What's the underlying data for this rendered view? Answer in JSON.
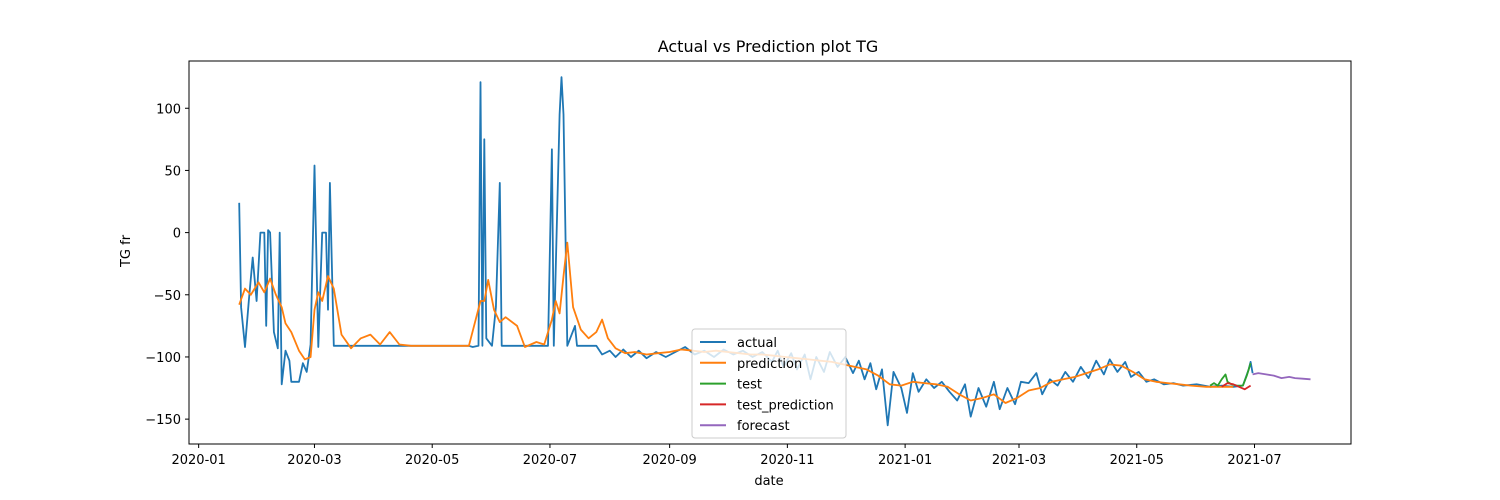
{
  "chart_data": {
    "type": "line",
    "title": "Actual vs Prediction plot TG",
    "xlabel": "date",
    "ylabel": "TG fr",
    "xlim": [
      "2019-12-27",
      "2021-08-20"
    ],
    "ylim": [
      -170,
      138
    ],
    "x_ticks": [
      "2020-01",
      "2020-03",
      "2020-05",
      "2020-07",
      "2020-09",
      "2020-11",
      "2021-01",
      "2021-03",
      "2021-05",
      "2021-07"
    ],
    "y_ticks": [
      100,
      50,
      0,
      -50,
      -100,
      -150
    ],
    "grid": false,
    "legend_position": "lower-center",
    "series": [
      {
        "name": "actual",
        "color": "#1f77b4",
        "points": [
          [
            "2020-01-22",
            24
          ],
          [
            "2020-01-23",
            -60
          ],
          [
            "2020-01-25",
            -92
          ],
          [
            "2020-01-27",
            -55
          ],
          [
            "2020-01-29",
            -20
          ],
          [
            "2020-01-31",
            -55
          ],
          [
            "2020-02-02",
            0
          ],
          [
            "2020-02-04",
            0
          ],
          [
            "2020-02-05",
            -75
          ],
          [
            "2020-02-06",
            2
          ],
          [
            "2020-02-07",
            0
          ],
          [
            "2020-02-09",
            -80
          ],
          [
            "2020-02-11",
            -93
          ],
          [
            "2020-02-12",
            0
          ],
          [
            "2020-02-13",
            -122
          ],
          [
            "2020-02-15",
            -95
          ],
          [
            "2020-02-17",
            -103
          ],
          [
            "2020-02-18",
            -120
          ],
          [
            "2020-02-22",
            -120
          ],
          [
            "2020-02-24",
            -105
          ],
          [
            "2020-02-26",
            -112
          ],
          [
            "2020-02-28",
            -90
          ],
          [
            "2020-03-01",
            54
          ],
          [
            "2020-03-03",
            -92
          ],
          [
            "2020-03-05",
            0
          ],
          [
            "2020-03-07",
            0
          ],
          [
            "2020-03-08",
            -62
          ],
          [
            "2020-03-09",
            40
          ],
          [
            "2020-03-11",
            -91
          ],
          [
            "2020-04-15",
            -91
          ],
          [
            "2020-05-20",
            -91
          ],
          [
            "2020-05-22",
            -92
          ],
          [
            "2020-05-25",
            -91
          ],
          [
            "2020-05-26",
            121
          ],
          [
            "2020-05-27",
            -91
          ],
          [
            "2020-05-28",
            75
          ],
          [
            "2020-05-29",
            -85
          ],
          [
            "2020-06-01",
            -91
          ],
          [
            "2020-06-03",
            -60
          ],
          [
            "2020-06-05",
            40
          ],
          [
            "2020-06-06",
            -91
          ],
          [
            "2020-06-30",
            -91
          ],
          [
            "2020-07-02",
            67
          ],
          [
            "2020-07-03",
            -91
          ],
          [
            "2020-07-06",
            95
          ],
          [
            "2020-07-07",
            125
          ],
          [
            "2020-07-08",
            95
          ],
          [
            "2020-07-10",
            -91
          ],
          [
            "2020-07-14",
            -75
          ],
          [
            "2020-07-15",
            -91
          ],
          [
            "2020-07-25",
            -91
          ],
          [
            "2020-07-28",
            -98
          ],
          [
            "2020-08-01",
            -95
          ],
          [
            "2020-08-04",
            -100
          ],
          [
            "2020-08-08",
            -94
          ],
          [
            "2020-08-12",
            -100
          ],
          [
            "2020-08-16",
            -95
          ],
          [
            "2020-08-20",
            -101
          ],
          [
            "2020-08-25",
            -96
          ],
          [
            "2020-08-30",
            -100
          ],
          [
            "2020-09-04",
            -96
          ],
          [
            "2020-09-09",
            -92
          ],
          [
            "2020-09-14",
            -98
          ],
          [
            "2020-09-19",
            -95
          ],
          [
            "2020-09-24",
            -100
          ],
          [
            "2020-09-29",
            -94
          ],
          [
            "2020-10-04",
            -98
          ],
          [
            "2020-10-09",
            -95
          ],
          [
            "2020-10-14",
            -100
          ],
          [
            "2020-10-19",
            -96
          ],
          [
            "2020-10-24",
            -104
          ],
          [
            "2020-10-27",
            -95
          ],
          [
            "2020-10-30",
            -108
          ],
          [
            "2020-11-03",
            -97
          ],
          [
            "2020-11-06",
            -110
          ],
          [
            "2020-11-10",
            -98
          ],
          [
            "2020-11-13",
            -118
          ],
          [
            "2020-11-16",
            -100
          ],
          [
            "2020-11-20",
            -112
          ],
          [
            "2020-11-23",
            -96
          ],
          [
            "2020-11-27",
            -108
          ],
          [
            "2020-12-01",
            -100
          ],
          [
            "2020-12-05",
            -113
          ],
          [
            "2020-12-08",
            -103
          ],
          [
            "2020-12-11",
            -118
          ],
          [
            "2020-12-14",
            -105
          ],
          [
            "2020-12-17",
            -126
          ],
          [
            "2020-12-20",
            -110
          ],
          [
            "2020-12-23",
            -155
          ],
          [
            "2020-12-26",
            -112
          ],
          [
            "2020-12-30",
            -125
          ],
          [
            "2021-01-02",
            -145
          ],
          [
            "2021-01-05",
            -113
          ],
          [
            "2021-01-08",
            -128
          ],
          [
            "2021-01-12",
            -118
          ],
          [
            "2021-01-16",
            -125
          ],
          [
            "2021-01-20",
            -120
          ],
          [
            "2021-01-24",
            -128
          ],
          [
            "2021-01-28",
            -135
          ],
          [
            "2021-02-01",
            -122
          ],
          [
            "2021-02-04",
            -148
          ],
          [
            "2021-02-08",
            -125
          ],
          [
            "2021-02-12",
            -140
          ],
          [
            "2021-02-16",
            -120
          ],
          [
            "2021-02-19",
            -142
          ],
          [
            "2021-02-23",
            -125
          ],
          [
            "2021-02-27",
            -138
          ],
          [
            "2021-03-02",
            -120
          ],
          [
            "2021-03-06",
            -121
          ],
          [
            "2021-03-10",
            -113
          ],
          [
            "2021-03-13",
            -130
          ],
          [
            "2021-03-17",
            -118
          ],
          [
            "2021-03-21",
            -123
          ],
          [
            "2021-03-25",
            -112
          ],
          [
            "2021-03-29",
            -120
          ],
          [
            "2021-04-02",
            -108
          ],
          [
            "2021-04-06",
            -117
          ],
          [
            "2021-04-10",
            -103
          ],
          [
            "2021-04-14",
            -114
          ],
          [
            "2021-04-17",
            -102
          ],
          [
            "2021-04-21",
            -112
          ],
          [
            "2021-04-25",
            -104
          ],
          [
            "2021-04-28",
            -116
          ],
          [
            "2021-05-02",
            -112
          ],
          [
            "2021-05-06",
            -120
          ],
          [
            "2021-05-10",
            -118
          ],
          [
            "2021-05-15",
            -122
          ],
          [
            "2021-05-20",
            -121
          ],
          [
            "2021-05-25",
            -123
          ],
          [
            "2021-06-01",
            -122
          ],
          [
            "2021-06-08",
            -124
          ],
          [
            "2021-06-14",
            -123
          ],
          [
            "2021-06-20",
            -124
          ],
          [
            "2021-06-25",
            -123
          ],
          [
            "2021-06-28",
            -110
          ],
          [
            "2021-06-29",
            -104
          ],
          [
            "2021-06-30",
            -113
          ]
        ]
      },
      {
        "name": "prediction",
        "color": "#ff7f0e",
        "points": [
          [
            "2020-01-22",
            -58
          ],
          [
            "2020-01-25",
            -45
          ],
          [
            "2020-01-28",
            -50
          ],
          [
            "2020-02-01",
            -40
          ],
          [
            "2020-02-04",
            -48
          ],
          [
            "2020-02-07",
            -37
          ],
          [
            "2020-02-10",
            -50
          ],
          [
            "2020-02-13",
            -60
          ],
          [
            "2020-02-15",
            -73
          ],
          [
            "2020-02-18",
            -80
          ],
          [
            "2020-02-22",
            -95
          ],
          [
            "2020-02-25",
            -102
          ],
          [
            "2020-02-28",
            -100
          ],
          [
            "2020-03-01",
            -62
          ],
          [
            "2020-03-03",
            -48
          ],
          [
            "2020-03-05",
            -55
          ],
          [
            "2020-03-08",
            -35
          ],
          [
            "2020-03-11",
            -45
          ],
          [
            "2020-03-15",
            -82
          ],
          [
            "2020-03-20",
            -93
          ],
          [
            "2020-03-25",
            -85
          ],
          [
            "2020-03-30",
            -82
          ],
          [
            "2020-04-04",
            -90
          ],
          [
            "2020-04-09",
            -80
          ],
          [
            "2020-04-14",
            -90
          ],
          [
            "2020-04-20",
            -91
          ],
          [
            "2020-05-20",
            -91
          ],
          [
            "2020-05-26",
            -55
          ],
          [
            "2020-05-28",
            -55
          ],
          [
            "2020-05-30",
            -38
          ],
          [
            "2020-06-02",
            -62
          ],
          [
            "2020-06-05",
            -72
          ],
          [
            "2020-06-08",
            -68
          ],
          [
            "2020-06-14",
            -75
          ],
          [
            "2020-06-18",
            -92
          ],
          [
            "2020-06-24",
            -88
          ],
          [
            "2020-06-28",
            -90
          ],
          [
            "2020-07-02",
            -70
          ],
          [
            "2020-07-04",
            -55
          ],
          [
            "2020-07-06",
            -65
          ],
          [
            "2020-07-08",
            -35
          ],
          [
            "2020-07-10",
            -8
          ],
          [
            "2020-07-13",
            -60
          ],
          [
            "2020-07-17",
            -78
          ],
          [
            "2020-07-21",
            -85
          ],
          [
            "2020-07-25",
            -80
          ],
          [
            "2020-07-28",
            -70
          ],
          [
            "2020-07-31",
            -85
          ],
          [
            "2020-08-04",
            -93
          ],
          [
            "2020-08-09",
            -97
          ],
          [
            "2020-08-14",
            -96
          ],
          [
            "2020-08-20",
            -98
          ],
          [
            "2020-08-26",
            -97
          ],
          [
            "2020-09-01",
            -96
          ],
          [
            "2020-09-07",
            -94
          ],
          [
            "2020-09-13",
            -95
          ],
          [
            "2020-09-19",
            -96
          ],
          [
            "2020-09-25",
            -95
          ],
          [
            "2020-10-01",
            -96
          ],
          [
            "2020-10-07",
            -97
          ],
          [
            "2020-10-13",
            -98
          ],
          [
            "2020-10-19",
            -98
          ],
          [
            "2020-10-25",
            -99
          ],
          [
            "2020-10-31",
            -100
          ],
          [
            "2020-11-06",
            -101
          ],
          [
            "2020-11-12",
            -102
          ],
          [
            "2020-11-18",
            -103
          ],
          [
            "2020-11-24",
            -104
          ],
          [
            "2020-11-30",
            -106
          ],
          [
            "2020-12-06",
            -108
          ],
          [
            "2020-12-12",
            -110
          ],
          [
            "2020-12-18",
            -115
          ],
          [
            "2020-12-24",
            -122
          ],
          [
            "2020-12-30",
            -123
          ],
          [
            "2021-01-05",
            -120
          ],
          [
            "2021-01-11",
            -121
          ],
          [
            "2021-01-17",
            -122
          ],
          [
            "2021-01-23",
            -124
          ],
          [
            "2021-01-29",
            -130
          ],
          [
            "2021-02-04",
            -135
          ],
          [
            "2021-02-10",
            -133
          ],
          [
            "2021-02-16",
            -130
          ],
          [
            "2021-02-22",
            -137
          ],
          [
            "2021-02-28",
            -133
          ],
          [
            "2021-03-06",
            -127
          ],
          [
            "2021-03-12",
            -125
          ],
          [
            "2021-03-18",
            -120
          ],
          [
            "2021-03-24",
            -118
          ],
          [
            "2021-03-30",
            -116
          ],
          [
            "2021-04-05",
            -113
          ],
          [
            "2021-04-11",
            -110
          ],
          [
            "2021-04-17",
            -106
          ],
          [
            "2021-04-23",
            -107
          ],
          [
            "2021-04-29",
            -112
          ],
          [
            "2021-05-05",
            -118
          ],
          [
            "2021-05-11",
            -120
          ],
          [
            "2021-05-17",
            -121
          ],
          [
            "2021-05-23",
            -122
          ],
          [
            "2021-05-29",
            -123
          ],
          [
            "2021-06-06",
            -124
          ],
          [
            "2021-06-14",
            -124
          ],
          [
            "2021-06-20",
            -124
          ]
        ]
      },
      {
        "name": "test",
        "color": "#2ca02c",
        "points": [
          [
            "2021-06-08",
            -123
          ],
          [
            "2021-06-10",
            -121
          ],
          [
            "2021-06-12",
            -123
          ],
          [
            "2021-06-14",
            -118
          ],
          [
            "2021-06-16",
            -114
          ],
          [
            "2021-06-17",
            -120
          ],
          [
            "2021-06-19",
            -122
          ],
          [
            "2021-06-22",
            -123
          ],
          [
            "2021-06-25",
            -123
          ],
          [
            "2021-06-27",
            -115
          ],
          [
            "2021-06-29",
            -105
          ]
        ]
      },
      {
        "name": "test_prediction",
        "color": "#d62728",
        "points": [
          [
            "2021-06-14",
            -124
          ],
          [
            "2021-06-17",
            -121
          ],
          [
            "2021-06-20",
            -122
          ],
          [
            "2021-06-23",
            -124
          ],
          [
            "2021-06-26",
            -126
          ],
          [
            "2021-06-29",
            -123
          ]
        ]
      },
      {
        "name": "forecast",
        "color": "#9467bd",
        "points": [
          [
            "2021-06-30",
            -114
          ],
          [
            "2021-07-03",
            -113
          ],
          [
            "2021-07-07",
            -114
          ],
          [
            "2021-07-11",
            -115
          ],
          [
            "2021-07-15",
            -117
          ],
          [
            "2021-07-19",
            -116
          ],
          [
            "2021-07-22",
            -117
          ],
          [
            "2021-07-26",
            -117.5
          ],
          [
            "2021-07-30",
            -118
          ]
        ]
      }
    ]
  }
}
